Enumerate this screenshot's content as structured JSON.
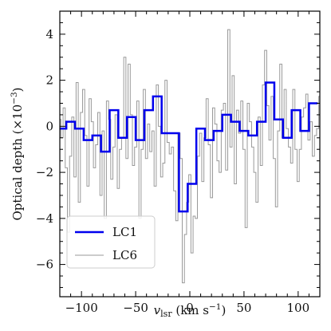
{
  "chart_data": {
    "type": "line",
    "drawstyle": "steps-mid",
    "xlabel": "v",
    "xlabel_sub": "lsr",
    "xlabel_unit": " (km s",
    "xlabel_unit_sup": "−1",
    "xlabel_unit_close": ")",
    "ylabel": "Optical depth (×10",
    "ylabel_sup": "−3",
    "ylabel_close": ")",
    "xlim": [
      -120,
      120
    ],
    "ylim": [
      -7.4,
      5.0
    ],
    "xticks": [
      -100,
      -50,
      0,
      50,
      100
    ],
    "xtick_labels": [
      "−100",
      "−50",
      "0",
      "50",
      "100"
    ],
    "yticks": [
      -6,
      -4,
      -2,
      0,
      2,
      4
    ],
    "ytick_labels": [
      "−6",
      "−4",
      "−2",
      "0",
      "2",
      "4"
    ],
    "legend_position": "lower-left",
    "grid": false,
    "series": [
      {
        "name": "LC6",
        "color": "#999999",
        "x": [
          -120,
          -118,
          -116,
          -114,
          -112,
          -110,
          -108,
          -106,
          -104,
          -102,
          -100,
          -98,
          -96,
          -94,
          -92,
          -90,
          -88,
          -86,
          -84,
          -82,
          -80,
          -78,
          -76,
          -74,
          -72,
          -70,
          -68,
          -66,
          -64,
          -62,
          -60,
          -58,
          -56,
          -54,
          -52,
          -50,
          -48,
          -46,
          -44,
          -42,
          -40,
          -38,
          -36,
          -34,
          -32,
          -30,
          -28,
          -26,
          -24,
          -22,
          -20,
          -18,
          -16,
          -14,
          -12,
          -10,
          -8,
          -6,
          -4,
          -2,
          0,
          2,
          4,
          6,
          8,
          10,
          12,
          14,
          16,
          18,
          20,
          22,
          24,
          26,
          28,
          30,
          32,
          34,
          36,
          38,
          40,
          42,
          44,
          46,
          48,
          50,
          52,
          54,
          56,
          58,
          60,
          62,
          64,
          66,
          68,
          70,
          72,
          74,
          76,
          78,
          80,
          82,
          84,
          86,
          88,
          90,
          92,
          94,
          96,
          98,
          100,
          102,
          104,
          106,
          108,
          110,
          112,
          114,
          116,
          118,
          120
        ],
        "values": [
          0.3,
          -0.5,
          0.8,
          -1.8,
          -4.6,
          -1.3,
          0.4,
          -2.2,
          1.9,
          -3.3,
          0.6,
          1.6,
          -0.4,
          -2.6,
          1.2,
          0.2,
          -1.8,
          -0.8,
          0.6,
          -3.0,
          -0.2,
          -4.0,
          1.1,
          0.3,
          -2.3,
          -0.9,
          0.5,
          -2.7,
          -1.0,
          -0.5,
          3.0,
          -1.4,
          2.7,
          0.5,
          -1.7,
          -0.9,
          1.1,
          -4.0,
          -1.0,
          1.6,
          -1.4,
          0.1,
          -1.1,
          -0.2,
          -2.6,
          1.8,
          0.0,
          -2.2,
          -1.6,
          2.0,
          -0.7,
          -1.2,
          -0.9,
          -2.8,
          -4.1,
          -0.3,
          -1.4,
          -6.8,
          -4.7,
          -3.3,
          -2.1,
          -5.5,
          -3.9,
          -4.0,
          -1.3,
          -0.3,
          -2.4,
          -0.5,
          1.2,
          -0.8,
          -3.1,
          0.8,
          0.1,
          -1.5,
          -2.0,
          0.7,
          1.0,
          -1.9,
          4.2,
          -0.9,
          2.2,
          -2.5,
          0.7,
          -0.3,
          1.1,
          -1.0,
          -4.4,
          1.0,
          0.2,
          -0.9,
          -2.0,
          -3.3,
          0.4,
          -1.7,
          1.8,
          3.3,
          0.9,
          -0.6,
          1.3,
          -1.4,
          -3.5,
          -0.2,
          2.7,
          -0.5,
          1.6,
          -0.1,
          -0.9,
          -1.6,
          1.6,
          -1.0,
          -2.4,
          -1.0,
          0.4,
          0.8,
          1.4,
          -0.6,
          0.2,
          -1.3,
          -0.4,
          -0.1,
          1.3
        ]
      },
      {
        "name": "LC1",
        "color": "#0000ee",
        "x": [
          -118,
          -110,
          -102,
          -94,
          -86,
          -78,
          -70,
          -62,
          -54,
          -46,
          -38,
          -30,
          -22,
          -14,
          -6,
          2,
          10,
          18,
          26,
          34,
          42,
          50,
          58,
          66,
          74,
          82,
          90,
          98,
          106,
          114
        ],
        "values": [
          -0.1,
          0.2,
          -0.1,
          -0.6,
          -0.4,
          -1.1,
          0.7,
          -0.5,
          0.4,
          -0.6,
          0.7,
          1.3,
          -0.3,
          -0.3,
          -3.7,
          -2.5,
          -0.1,
          -0.6,
          -0.2,
          0.5,
          0.2,
          -0.2,
          -0.4,
          0.2,
          1.9,
          0.3,
          -0.5,
          0.7,
          -0.2,
          1.0
        ]
      }
    ]
  }
}
